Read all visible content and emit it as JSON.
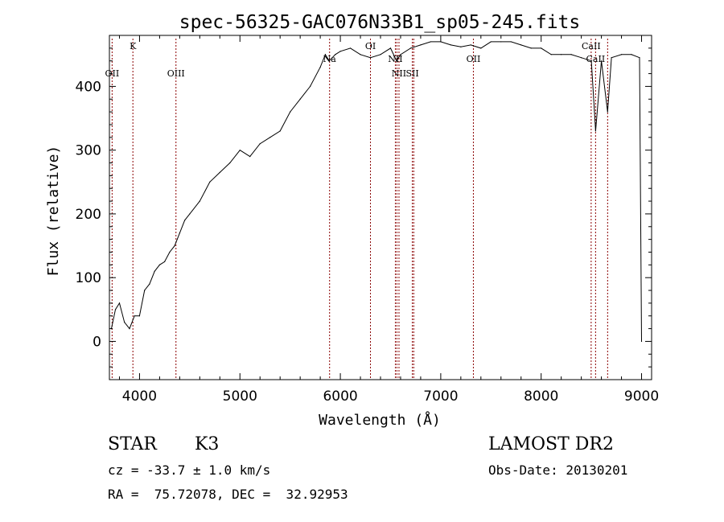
{
  "chart_data": {
    "type": "line",
    "title": "spec-56325-GAC076N33B1_sp05-245.fits",
    "xlabel": "Wavelength (Å)",
    "ylabel": "Flux (relative)",
    "xlim": [
      3700,
      9100
    ],
    "ylim": [
      -60,
      480
    ],
    "xticks": [
      4000,
      5000,
      6000,
      7000,
      8000,
      9000
    ],
    "yticks": [
      0,
      100,
      200,
      300,
      400
    ],
    "grid": false,
    "series": [
      {
        "x": [
          3720,
          3760,
          3800,
          3850,
          3900,
          3950,
          4000,
          4050,
          4100,
          4150,
          4200,
          4250,
          4300,
          4350,
          4400,
          4450,
          4500,
          4600,
          4700,
          4800,
          4900,
          5000,
          5100,
          5200,
          5300,
          5400,
          5500,
          5600,
          5700,
          5800,
          5850,
          5890,
          5950,
          6000,
          6100,
          6200,
          6300,
          6400,
          6500,
          6560,
          6600,
          6700,
          6800,
          6900,
          7000,
          7100,
          7200,
          7300,
          7400,
          7500,
          7600,
          7700,
          7800,
          7900,
          8000,
          8100,
          8200,
          8300,
          8400,
          8500,
          8542,
          8600,
          8662,
          8700,
          8800,
          8900,
          8980,
          9000
        ],
        "y": [
          20,
          50,
          60,
          30,
          20,
          40,
          40,
          80,
          90,
          110,
          120,
          125,
          140,
          150,
          170,
          190,
          200,
          220,
          250,
          265,
          280,
          300,
          290,
          310,
          320,
          330,
          360,
          380,
          400,
          430,
          450,
          440,
          450,
          455,
          460,
          450,
          445,
          450,
          460,
          440,
          450,
          460,
          465,
          470,
          470,
          465,
          462,
          465,
          460,
          470,
          470,
          470,
          465,
          460,
          460,
          450,
          450,
          450,
          445,
          440,
          330,
          440,
          360,
          445,
          450,
          450,
          445,
          0
        ]
      }
    ],
    "spectral_lines": [
      {
        "label": "OII",
        "x": 3727,
        "row": "low"
      },
      {
        "label": "K",
        "x": 3934,
        "row": "high"
      },
      {
        "label": "OIII",
        "x": 4363,
        "row": "low"
      },
      {
        "label": "Na",
        "x": 5893,
        "row": "mid"
      },
      {
        "label": "OI",
        "x": 6300,
        "row": "high"
      },
      {
        "label": "NII",
        "x": 6548,
        "row": "mid"
      },
      {
        "label": "",
        "x": 6563,
        "row": "none"
      },
      {
        "label": "NII",
        "x": 6584,
        "row": "low"
      },
      {
        "label": "SII",
        "x": 6717,
        "row": "low"
      },
      {
        "label": "",
        "x": 6731,
        "row": "none"
      },
      {
        "label": "OII",
        "x": 7325,
        "row": "mid"
      },
      {
        "label": "CaII",
        "x": 8498,
        "row": "high"
      },
      {
        "label": "CaII",
        "x": 8542,
        "row": "mid"
      },
      {
        "label": "",
        "x": 8662,
        "row": "none"
      }
    ]
  },
  "info": {
    "object_class": "STAR",
    "subclass": "K3",
    "survey": "LAMOST DR2",
    "cz": "cz = -33.7 ± 1.0 km/s",
    "obs_date": "Obs-Date: 20130201",
    "coords": "RA =  75.72078, DEC =  32.92953"
  },
  "colors": {
    "spectrum": "#000000",
    "line_markers": "#8b0000"
  }
}
